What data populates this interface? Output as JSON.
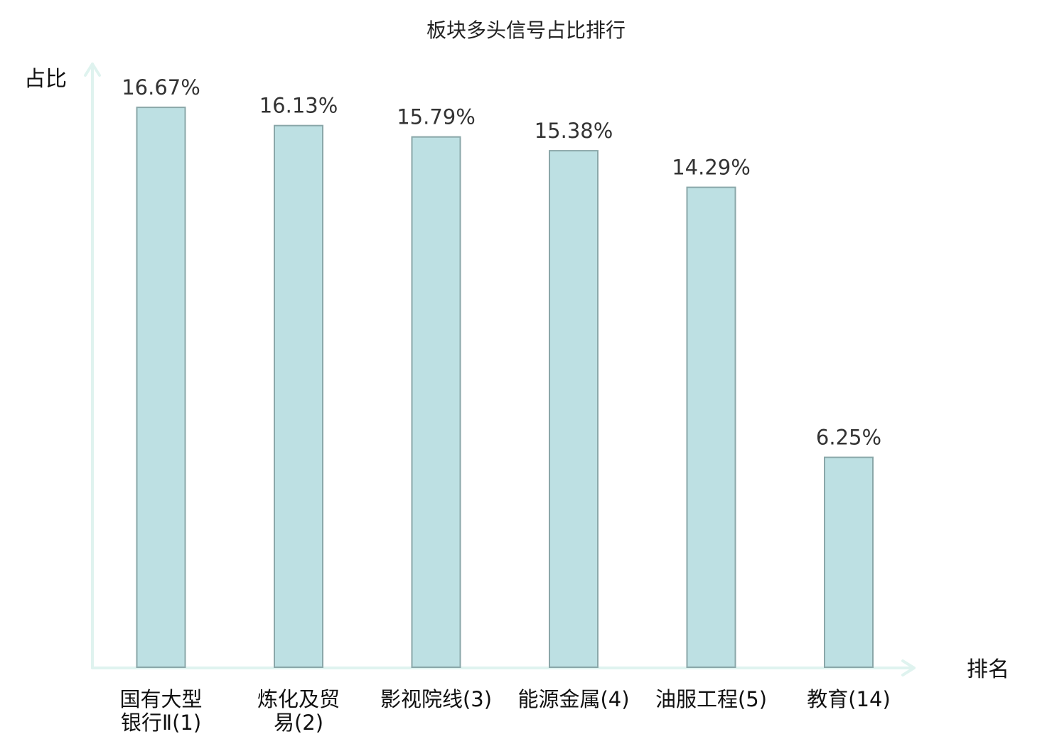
{
  "chart_data": {
    "type": "bar",
    "title": "板块多头信号占比排行",
    "ylabel": "占比",
    "xlabel": "排名",
    "ylim": [
      0,
      17.9
    ],
    "categories": [
      [
        "国有大型",
        "银行Ⅱ(1)"
      ],
      [
        "炼化及贸",
        "易(2)"
      ],
      [
        "影视院线(3)"
      ],
      [
        "能源金属(4)"
      ],
      [
        "油服工程(5)"
      ],
      [
        "教育(14)"
      ]
    ],
    "values": [
      16.67,
      16.13,
      15.79,
      15.38,
      14.29,
      6.25
    ],
    "value_labels": [
      "16.67%",
      "16.13%",
      "15.79%",
      "15.38%",
      "14.29%",
      "6.25%"
    ],
    "highlight": [
      false,
      false,
      false,
      false,
      false,
      true
    ],
    "grid": false,
    "legend": "none"
  },
  "colors": {
    "bar_fill": "#bde0e3",
    "bar_stroke": "#8aa7a9",
    "axis": "#dff3ef",
    "highlight_text": "#dd1111",
    "text": "#111111",
    "value_text": "#333333"
  }
}
